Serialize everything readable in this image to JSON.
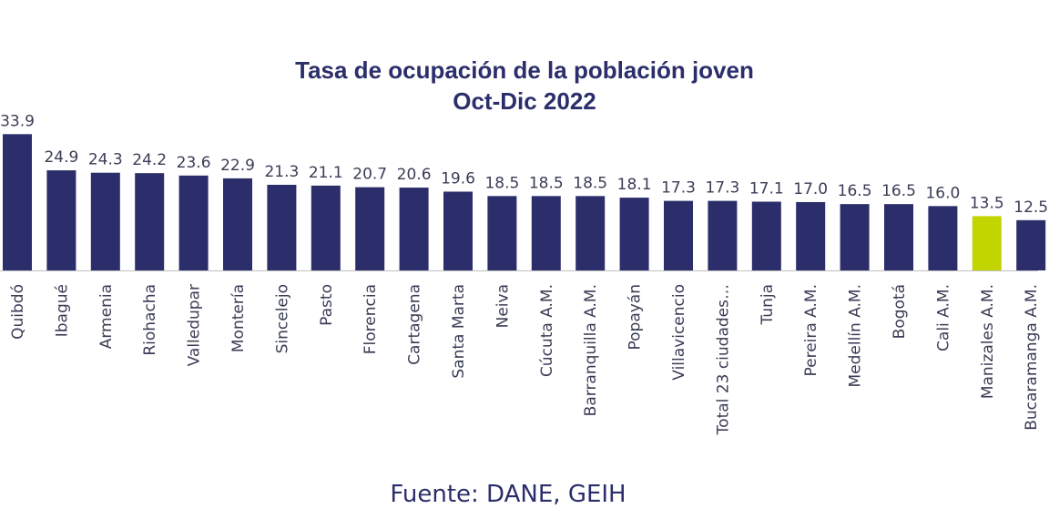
{
  "chart_data": {
    "type": "bar",
    "title_lines": [
      "Tasa de ocupación de la población joven",
      "Oct-Dic 2022"
    ],
    "categories": [
      "Quibdó",
      "Ibagué",
      "Armenia",
      "Riohacha",
      "Valledupar",
      "Montería",
      "Sincelejo",
      "Pasto",
      "Florencia",
      "Cartagena",
      "Santa Marta",
      "Neiva",
      "Cúcuta A.M.",
      "Barranquilla A.M.",
      "Popayán",
      "Villavicencio",
      "Total 23 ciudades…",
      "Tunja",
      "Pereira A.M.",
      "Medellín A.M.",
      "Bogotá",
      "Cali A.M.",
      "Manizales A.M.",
      "Bucaramanga A.M."
    ],
    "values": [
      33.9,
      24.9,
      24.3,
      24.2,
      23.6,
      22.9,
      21.3,
      21.1,
      20.7,
      20.6,
      19.6,
      18.5,
      18.5,
      18.5,
      18.1,
      17.3,
      17.3,
      17.1,
      17.0,
      16.5,
      16.5,
      16.0,
      13.5,
      12.5
    ],
    "value_labels": [
      "33.9",
      "24.9",
      "24.3",
      "24.2",
      "23.6",
      "22.9",
      "21.3",
      "21.1",
      "20.7",
      "20.6",
      "19.6",
      "18.5",
      "18.5",
      "18.5",
      "18.1",
      "17.3",
      "17.3",
      "17.1",
      "17.0",
      "16.5",
      "16.5",
      "16.0",
      "13.5",
      "12.5"
    ],
    "highlight_category": "Manizales A.M.",
    "colors": {
      "bar": "#2b2e6a",
      "highlight": "#c2d500",
      "axis": "#bfbfbf",
      "text": "#3a3d55",
      "title": "#2b2e6a"
    },
    "grid": false,
    "legend": "none"
  },
  "source": "Fuente: DANE, GEIH"
}
